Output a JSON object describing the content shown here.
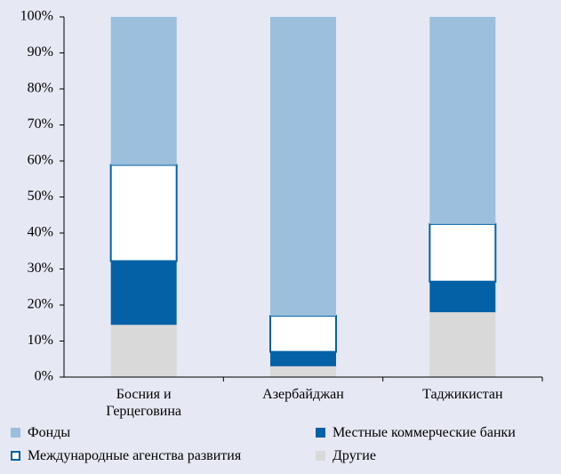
{
  "chart_data": {
    "type": "stacked_bar",
    "categories": [
      "Босния и Герцеговина",
      "Азербайджан",
      "Таджикистан"
    ],
    "series": [
      {
        "name": "Другие",
        "color": "#d9d9d9",
        "values": [
          14.5,
          3,
          18
        ]
      },
      {
        "name": "Местные коммерческие банки",
        "color": "#0461a6",
        "values": [
          17.7,
          4,
          8.5
        ]
      },
      {
        "name": "Международные агенства развития",
        "color": "#ffffff",
        "edgecolor": "#0461a6",
        "values": [
          26.7,
          10,
          16
        ]
      },
      {
        "name": "Фонды",
        "color": "#9bbfdc",
        "values": [
          41.1,
          83,
          57.5
        ]
      }
    ],
    "ylim": [
      0,
      100
    ],
    "yticks": [
      {
        "value": 0,
        "label": "0%"
      },
      {
        "value": 10,
        "label": "10%"
      },
      {
        "value": 20,
        "label": "20%"
      },
      {
        "value": 30,
        "label": "30%"
      },
      {
        "value": 40,
        "label": "40%"
      },
      {
        "value": 50,
        "label": "50%"
      },
      {
        "value": 60,
        "label": "60%"
      },
      {
        "value": 70,
        "label": "70%"
      },
      {
        "value": 80,
        "label": "80%"
      },
      {
        "value": 90,
        "label": "90%"
      },
      {
        "value": 100,
        "label": "100%"
      }
    ],
    "legend_order": [
      3,
      1,
      2,
      0
    ]
  }
}
